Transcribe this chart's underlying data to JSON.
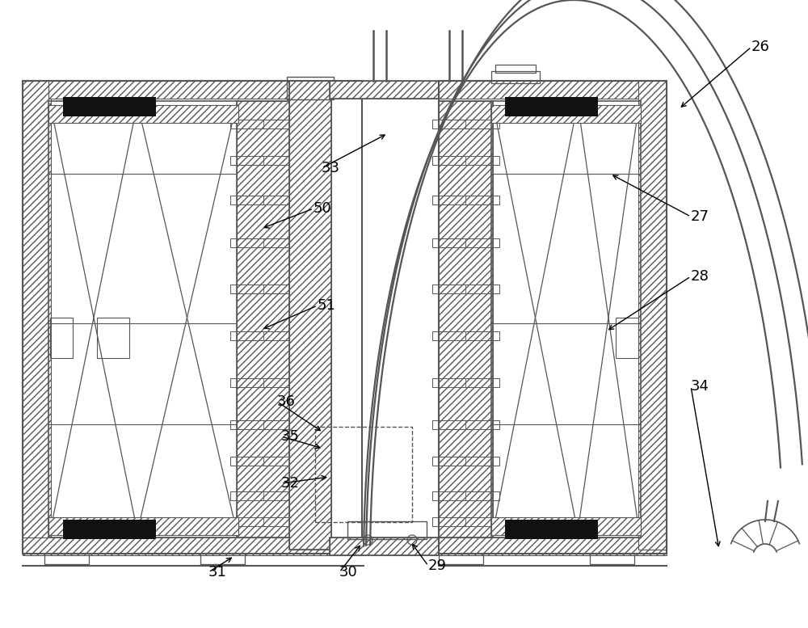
{
  "bg_color": "#ffffff",
  "lc": "#555555",
  "annotations": [
    [
      "26",
      930,
      58,
      840,
      135
    ],
    [
      "27",
      855,
      268,
      755,
      215
    ],
    [
      "28",
      855,
      342,
      750,
      410
    ],
    [
      "29",
      530,
      700,
      508,
      670
    ],
    [
      "30",
      420,
      708,
      448,
      672
    ],
    [
      "31",
      258,
      708,
      290,
      688
    ],
    [
      "32",
      348,
      598,
      408,
      590
    ],
    [
      "33",
      398,
      208,
      480,
      165
    ],
    [
      "34",
      855,
      478,
      890,
      680
    ],
    [
      "35",
      348,
      540,
      400,
      555
    ],
    [
      "36",
      343,
      497,
      400,
      535
    ],
    [
      "50",
      388,
      258,
      323,
      283
    ],
    [
      "51",
      393,
      378,
      323,
      408
    ]
  ]
}
